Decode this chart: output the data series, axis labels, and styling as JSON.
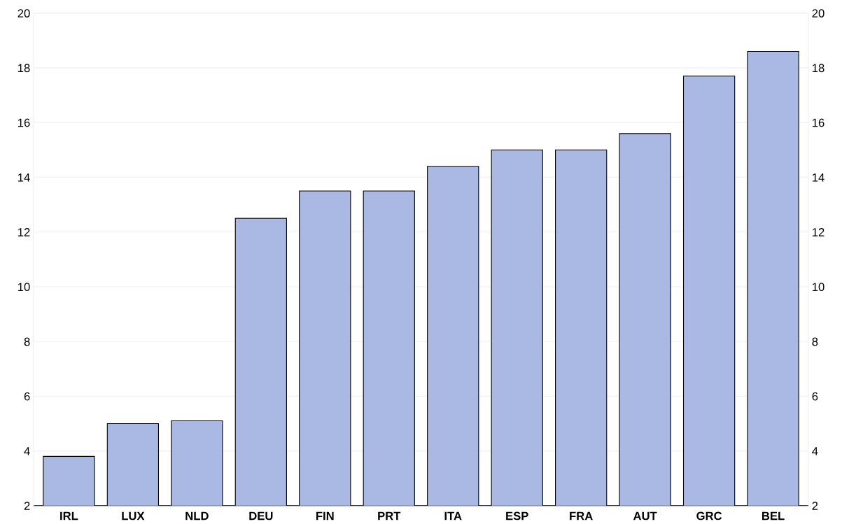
{
  "chart_data": {
    "type": "bar",
    "categories": [
      "IRL",
      "LUX",
      "NLD",
      "DEU",
      "FIN",
      "PRT",
      "ITA",
      "ESP",
      "FRA",
      "AUT",
      "GRC",
      "BEL"
    ],
    "values": [
      3.8,
      5.0,
      5.1,
      12.5,
      13.5,
      13.5,
      14.4,
      15.0,
      15.0,
      15.6,
      17.7,
      18.6
    ],
    "color": "#a9b9e3",
    "ylim": [
      2,
      20
    ],
    "yticks": [
      2,
      4,
      6,
      8,
      10,
      12,
      14,
      16,
      18,
      20
    ],
    "y2lim": [
      2,
      20
    ],
    "y2ticks": [
      2,
      4,
      6,
      8,
      10,
      12,
      14,
      16,
      18,
      20
    ],
    "grid": "y"
  }
}
